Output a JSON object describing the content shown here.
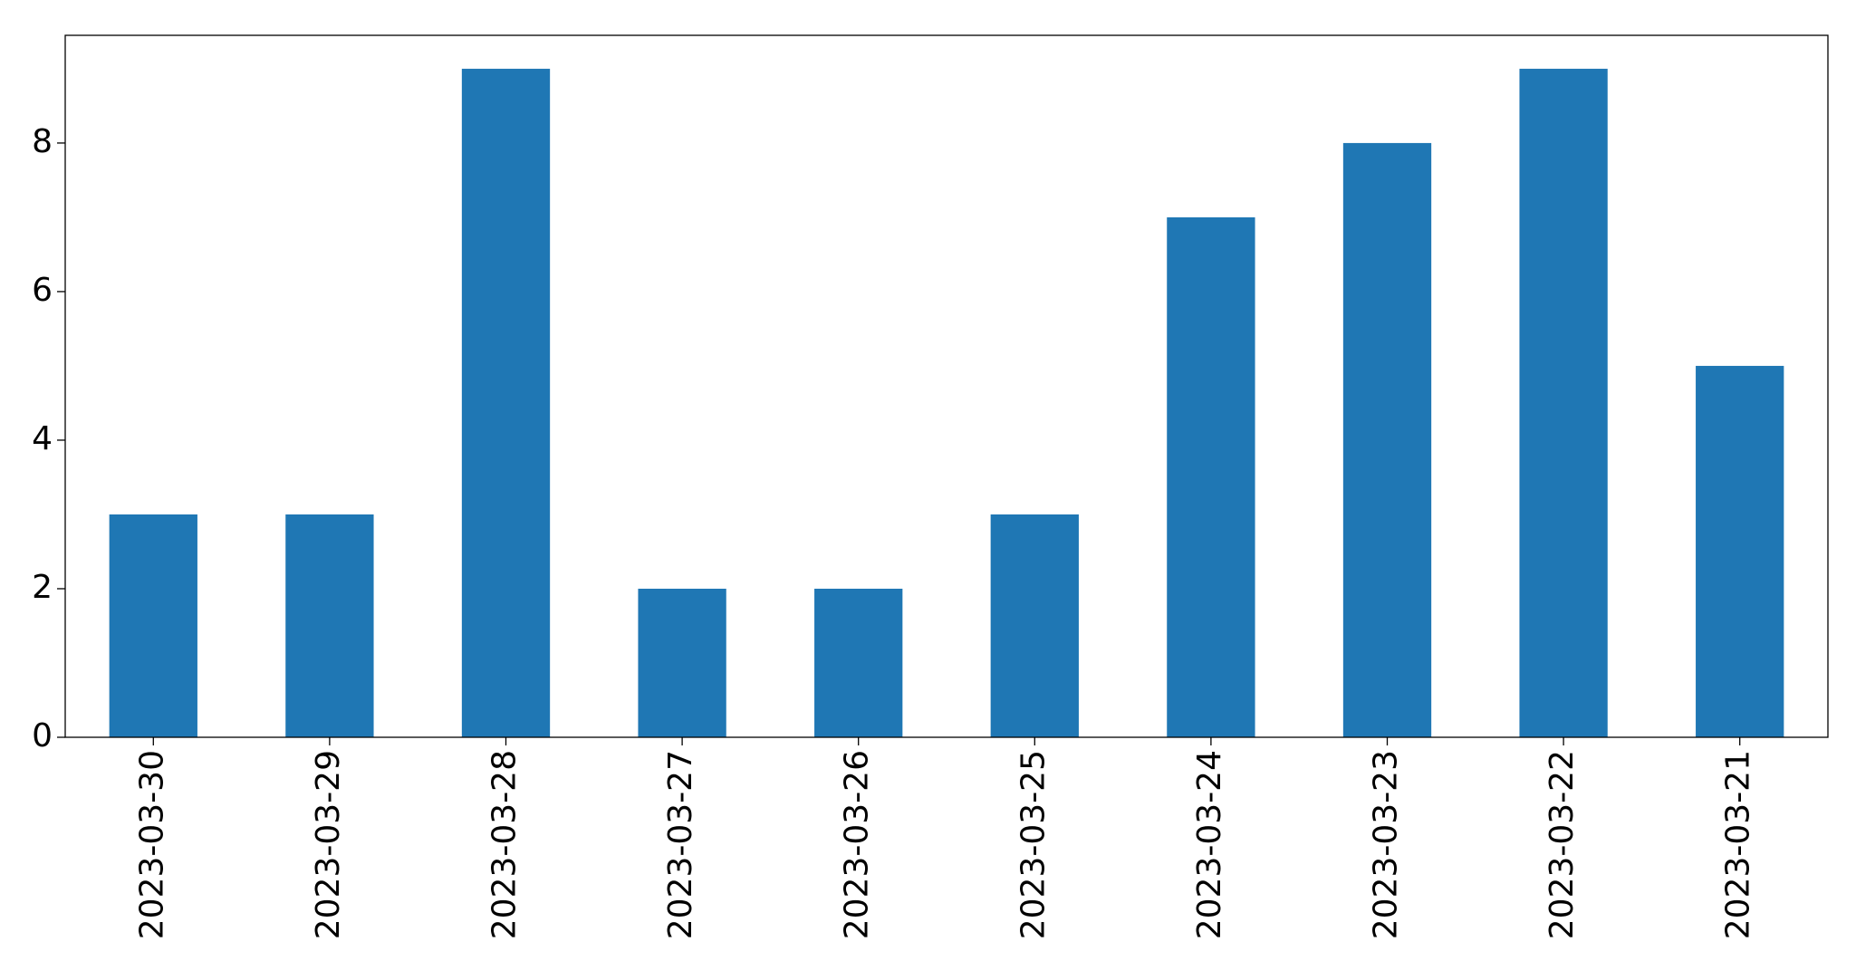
{
  "chart_data": {
    "type": "bar",
    "categories": [
      "2023-03-30",
      "2023-03-29",
      "2023-03-28",
      "2023-03-27",
      "2023-03-26",
      "2023-03-25",
      "2023-03-24",
      "2023-03-23",
      "2023-03-22",
      "2023-03-21"
    ],
    "values": [
      3,
      3,
      9,
      2,
      2,
      3,
      7,
      8,
      9,
      5
    ],
    "color": "#1f77b4",
    "ylim": [
      0,
      9.45
    ],
    "yticks": [
      0,
      2,
      4,
      6,
      8
    ],
    "grid": false
  }
}
